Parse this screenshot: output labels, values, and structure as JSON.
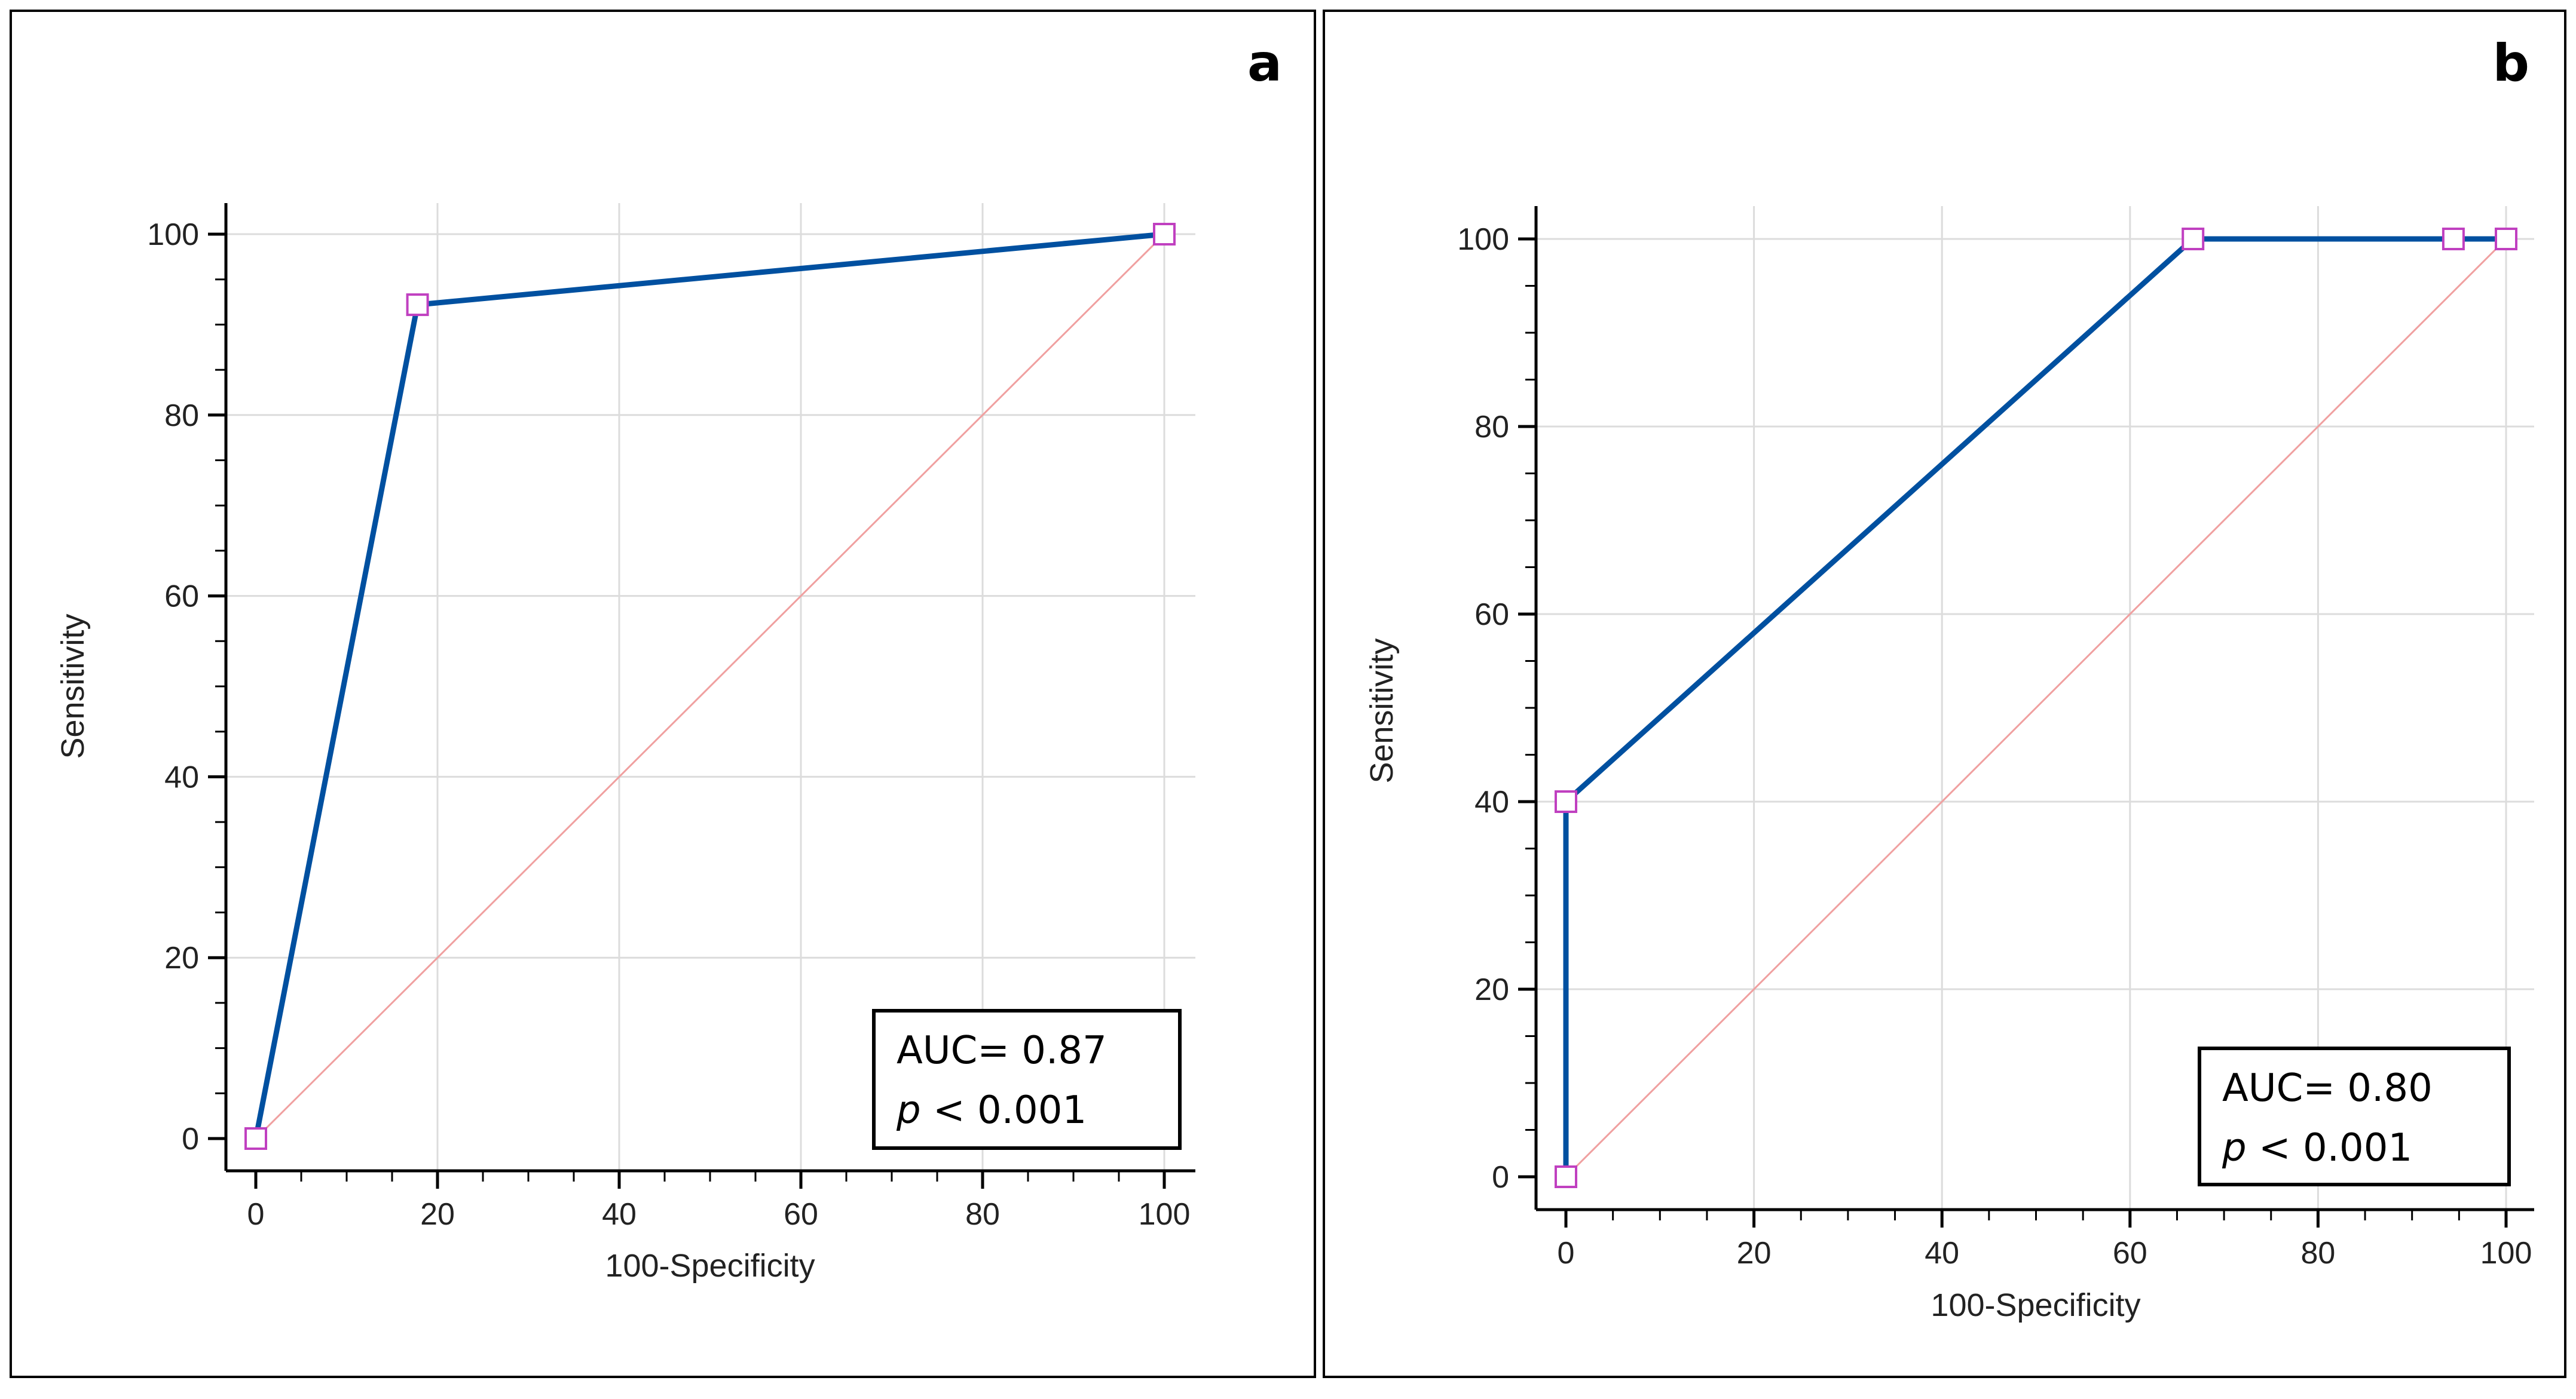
{
  "chart_data": [
    {
      "type": "line",
      "panel_label": "a",
      "xlabel": "100-Specificity",
      "ylabel": "Sensitivity",
      "xlim": [
        0,
        100
      ],
      "ylim": [
        0,
        100
      ],
      "xticks": [
        0,
        20,
        40,
        60,
        80,
        100
      ],
      "yticks": [
        0,
        20,
        40,
        60,
        80,
        100
      ],
      "grid": true,
      "series": [
        {
          "x": [
            0,
            17.8,
            100
          ],
          "y": [
            0,
            92.2,
            100
          ]
        }
      ],
      "reference_line": {
        "x": [
          0,
          100
        ],
        "y": [
          0,
          100
        ]
      },
      "annotation": {
        "auc": "AUC= 0.87",
        "p_symbol": "p",
        "p_rest": " < 0.001"
      },
      "colors": {
        "roc": "#0050a0",
        "marker": "#c040c0",
        "reference": "#f0a0a0",
        "grid": "#dcdcdc"
      }
    },
    {
      "type": "line",
      "panel_label": "b",
      "xlabel": "100-Specificity",
      "ylabel": "Sensitivity",
      "xlim": [
        0,
        100
      ],
      "ylim": [
        0,
        100
      ],
      "xticks": [
        0,
        20,
        40,
        60,
        80,
        100
      ],
      "yticks": [
        0,
        20,
        40,
        60,
        80,
        100
      ],
      "grid": true,
      "series": [
        {
          "x": [
            0,
            0,
            66.7,
            94.4,
            100
          ],
          "y": [
            0,
            40,
            100,
            100,
            100
          ]
        }
      ],
      "reference_line": {
        "x": [
          0,
          100
        ],
        "y": [
          0,
          100
        ]
      },
      "annotation": {
        "auc": "AUC= 0.80",
        "p_symbol": "p",
        "p_rest": " < 0.001"
      },
      "colors": {
        "roc": "#0050a0",
        "marker": "#c040c0",
        "reference": "#f0a0a0",
        "grid": "#dcdcdc"
      }
    }
  ]
}
